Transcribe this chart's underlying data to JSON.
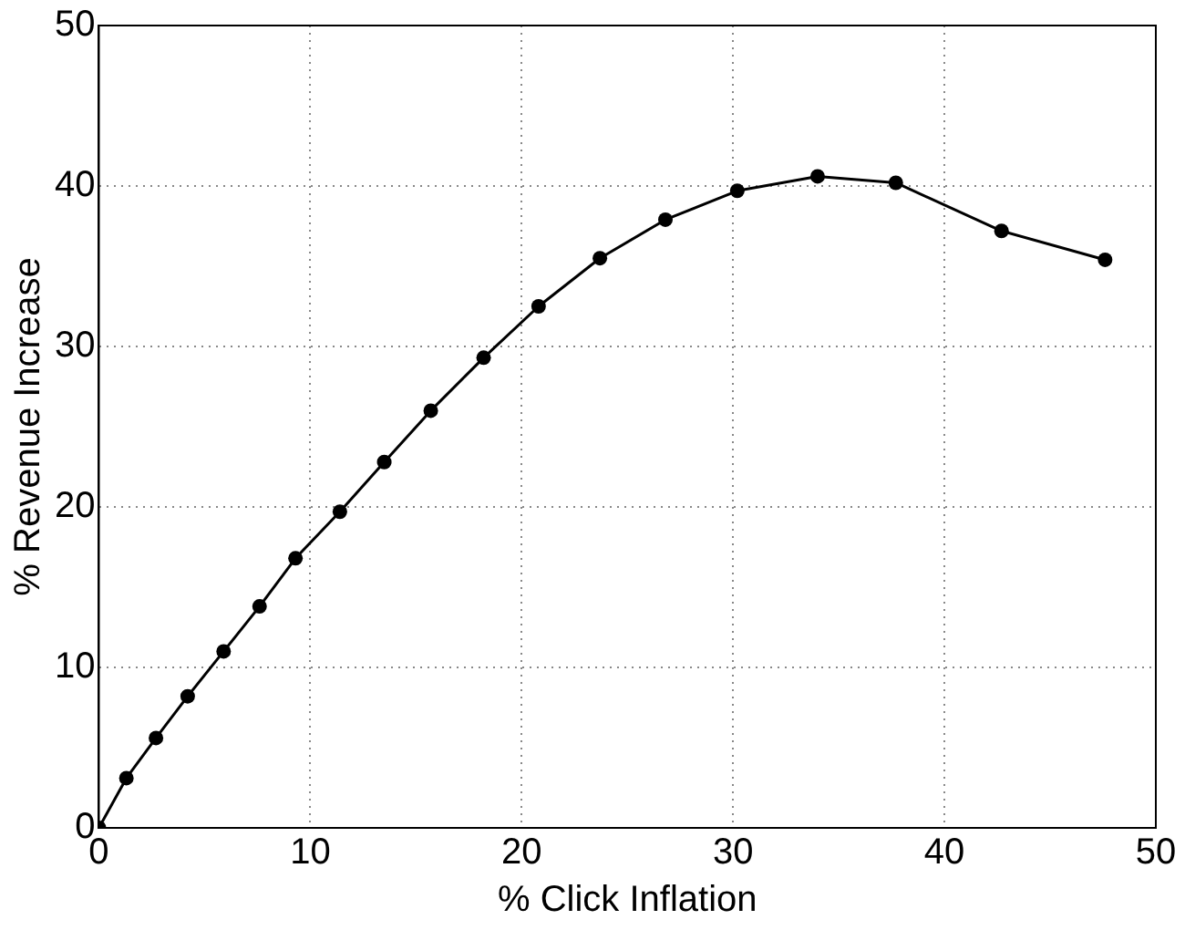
{
  "chart_data": {
    "type": "line",
    "xlabel": "% Click Inflation",
    "ylabel": "% Revenue Increase",
    "x": [
      0,
      1.3,
      2.7,
      4.2,
      5.9,
      7.6,
      9.3,
      11.4,
      13.5,
      15.7,
      18.2,
      20.8,
      23.7,
      26.8,
      30.2,
      34.0,
      37.7,
      42.7,
      47.6
    ],
    "series": [
      {
        "color": "#000000",
        "values": [
          0,
          3.1,
          5.6,
          8.2,
          11.0,
          13.8,
          16.8,
          19.7,
          22.8,
          26.0,
          29.3,
          32.5,
          35.5,
          37.9,
          39.7,
          40.6,
          40.2,
          37.2,
          35.4
        ]
      }
    ],
    "xlim": [
      0,
      50
    ],
    "ylim": [
      0,
      50
    ],
    "xticks": [
      0,
      10,
      20,
      30,
      40,
      50
    ],
    "yticks": [
      0,
      10,
      20,
      30,
      40,
      50
    ],
    "grid": true,
    "legend": false,
    "marker": "circle",
    "line_style": "solid"
  }
}
